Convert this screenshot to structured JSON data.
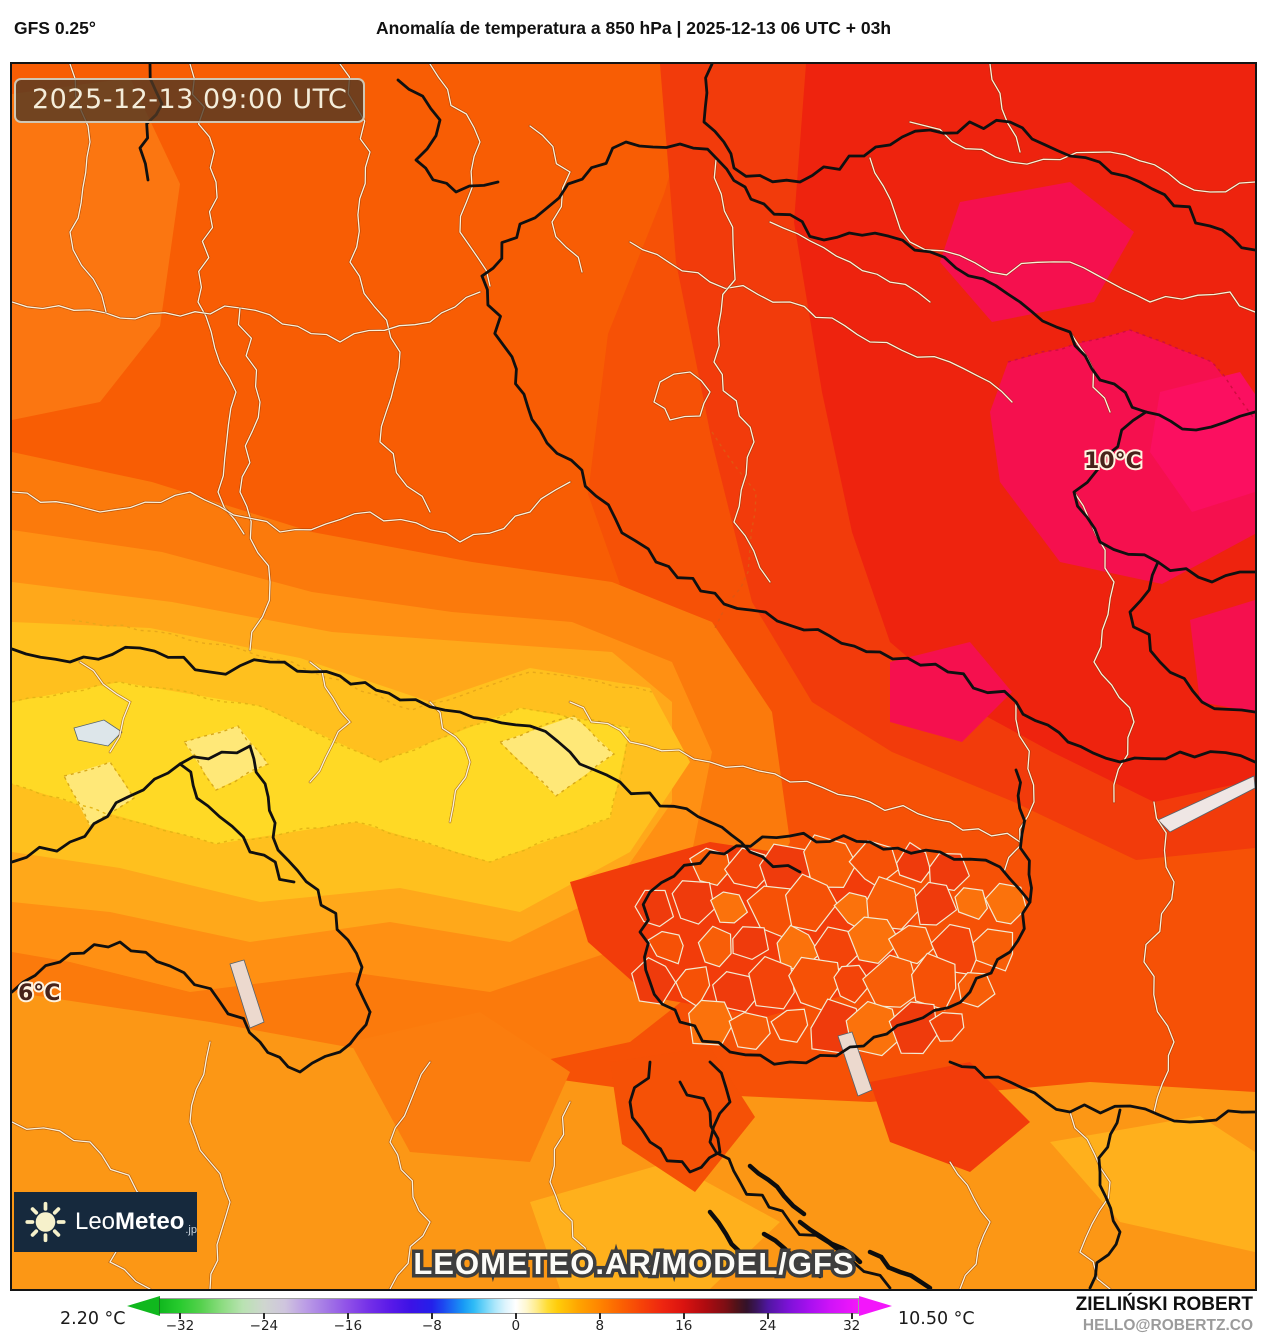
{
  "header": {
    "model": "GFS 0.25°",
    "title": "Anomalía de temperatura a 850 hPa | 2025-12-13 06 UTC + 03h"
  },
  "map": {
    "timestamp": "2025-12-13 09:00 UTC",
    "watermark": "LEOMETEO.AR/MODEL/GFS",
    "labels": [
      {
        "text": "10°C"
      },
      {
        "text": "6°C"
      }
    ],
    "logo": {
      "prefix": "Leo",
      "bold": "Meteo",
      "suffix": ".jp"
    }
  },
  "colorbar": {
    "min_label": "2.20 °C",
    "max_label": "10.50 °C",
    "ticks": [
      "−32",
      "−24",
      "−16",
      "−8",
      "0",
      "8",
      "16",
      "24",
      "32"
    ],
    "tick_values": [
      -32,
      -24,
      -16,
      -8,
      0,
      8,
      16,
      24,
      32
    ],
    "range": [
      -33.9,
      32.6
    ],
    "left_arrow_color": "#10b81e",
    "right_arrow_color": "#f316fb",
    "gradient": [
      {
        "v": -33.9,
        "c": "#10b81e"
      },
      {
        "v": -32,
        "c": "#28cb2e"
      },
      {
        "v": -30,
        "c": "#55d14d"
      },
      {
        "v": -28,
        "c": "#8cdc80"
      },
      {
        "v": -26,
        "c": "#b9e2b2"
      },
      {
        "v": -24,
        "c": "#cfd6cf"
      },
      {
        "v": -22,
        "c": "#cfc5de"
      },
      {
        "v": -20,
        "c": "#bb9ce6"
      },
      {
        "v": -18,
        "c": "#a377e6"
      },
      {
        "v": -16,
        "c": "#8f50e8"
      },
      {
        "v": -14,
        "c": "#7430e8"
      },
      {
        "v": -12,
        "c": "#5a1ae8"
      },
      {
        "v": -10,
        "c": "#3c12e6"
      },
      {
        "v": -8,
        "c": "#2420ea"
      },
      {
        "v": -7,
        "c": "#1d44f0"
      },
      {
        "v": -6,
        "c": "#1a6ef4"
      },
      {
        "v": -5,
        "c": "#189af5"
      },
      {
        "v": -4,
        "c": "#2fbbf6"
      },
      {
        "v": -3,
        "c": "#6cd3f8"
      },
      {
        "v": -2,
        "c": "#abe7fb"
      },
      {
        "v": -1,
        "c": "#ddf4fd"
      },
      {
        "v": 0,
        "c": "#ffffff"
      },
      {
        "v": 1,
        "c": "#fff8d0"
      },
      {
        "v": 2,
        "c": "#ffec8a"
      },
      {
        "v": 3,
        "c": "#ffdd35"
      },
      {
        "v": 4,
        "c": "#ffcc0a"
      },
      {
        "v": 6,
        "c": "#ffa400"
      },
      {
        "v": 8,
        "c": "#ff8400"
      },
      {
        "v": 10,
        "c": "#fb6202"
      },
      {
        "v": 12,
        "c": "#f64208"
      },
      {
        "v": 14,
        "c": "#ee2510"
      },
      {
        "v": 16,
        "c": "#da1310"
      },
      {
        "v": 18,
        "c": "#b00b10"
      },
      {
        "v": 20,
        "c": "#7c0e14"
      },
      {
        "v": 21,
        "c": "#521218"
      },
      {
        "v": 22,
        "c": "#33122a"
      },
      {
        "v": 23,
        "c": "#3b1560"
      },
      {
        "v": 24,
        "c": "#4f16a0"
      },
      {
        "v": 26,
        "c": "#7d12d8"
      },
      {
        "v": 28,
        "c": "#a810f0"
      },
      {
        "v": 30,
        "c": "#d013f8"
      },
      {
        "v": 32.6,
        "c": "#f316fb"
      }
    ]
  },
  "credits": {
    "name": "ZIELIŃSKI ROBERT",
    "email": "HELLO@ROBERTZ.CO"
  },
  "colors": {
    "base_orange": "#f65106",
    "warm_yellow": "#ffd925",
    "hot_red": "#ee230e",
    "extreme_crimson": "#f5104e",
    "logo_navy": "#16293d"
  }
}
